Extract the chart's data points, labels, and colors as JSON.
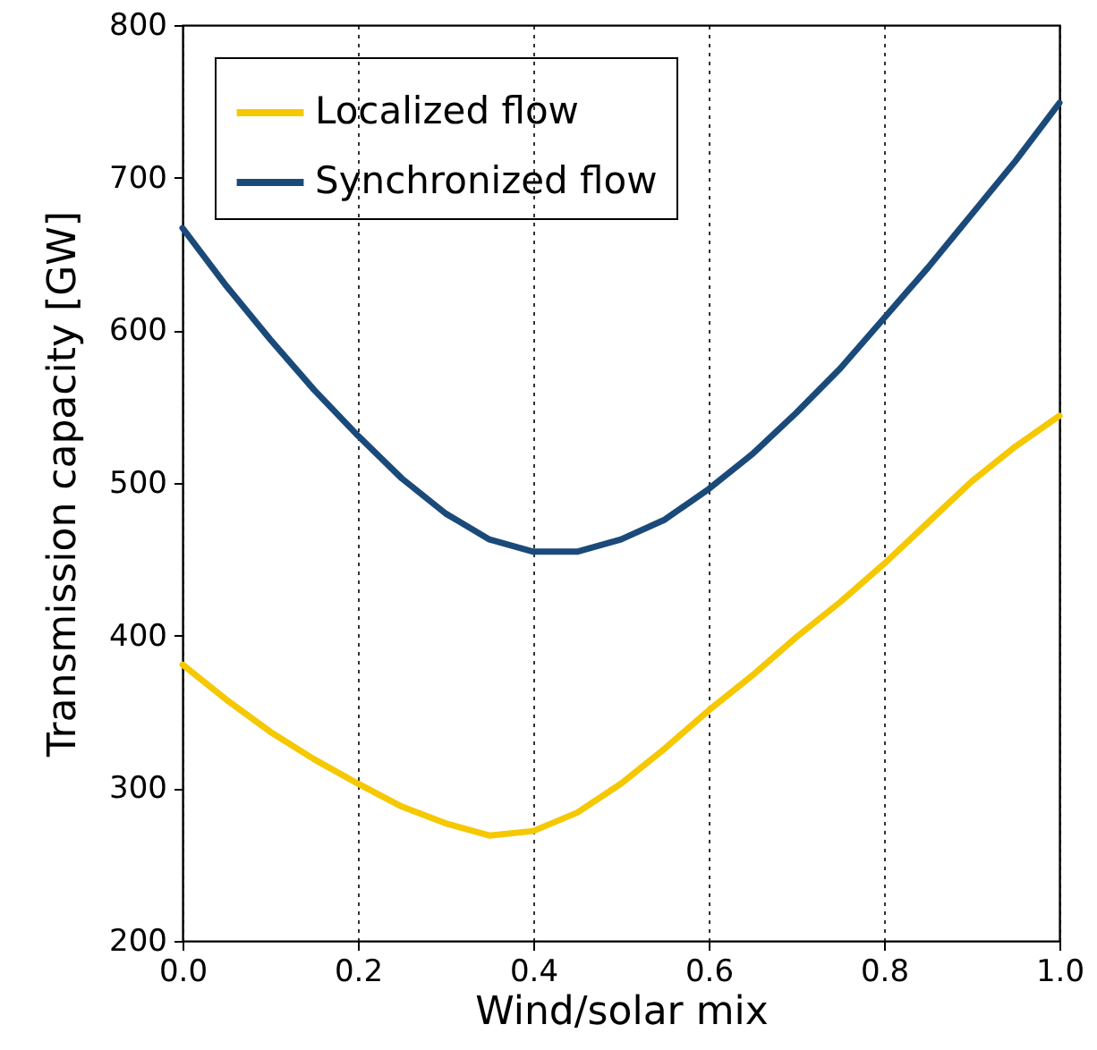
{
  "chart_data": {
    "type": "line",
    "xlabel": "Wind/solar mix",
    "ylabel": "Transmission capacity [GW]",
    "x": [
      0,
      0.05,
      0.1,
      0.15,
      0.2,
      0.25,
      0.3,
      0.35,
      0.4,
      0.45,
      0.5,
      0.55,
      0.6,
      0.65,
      0.7,
      0.75,
      0.8,
      0.85,
      0.9,
      0.95,
      1.0
    ],
    "series": [
      {
        "name": "Localized flow",
        "color": "#f5c800",
        "values": [
          381,
          358,
          337,
          319,
          303,
          288,
          277,
          269,
          272,
          284,
          303,
          326,
          351,
          374,
          399,
          422,
          447,
          474,
          501,
          524,
          544
        ]
      },
      {
        "name": "Synchronized flow",
        "color": "#1a4a7a",
        "values": [
          667,
          629,
          594,
          561,
          531,
          503,
          480,
          463,
          455,
          455,
          463,
          476,
          496,
          519,
          546,
          575,
          608,
          641,
          676,
          711,
          749
        ]
      }
    ],
    "xlim": [
      0,
      1
    ],
    "ylim": [
      200,
      800
    ],
    "xticks": [
      {
        "value": 0,
        "label": "0.0"
      },
      0.2,
      0.4,
      0.6,
      0.8,
      {
        "value": 1,
        "label": "1.0"
      }
    ],
    "yticks": [
      200,
      300,
      400,
      500,
      600,
      700,
      800
    ],
    "grid": "x",
    "legend": "top left",
    "marker": "none",
    "line_style": "solid"
  }
}
